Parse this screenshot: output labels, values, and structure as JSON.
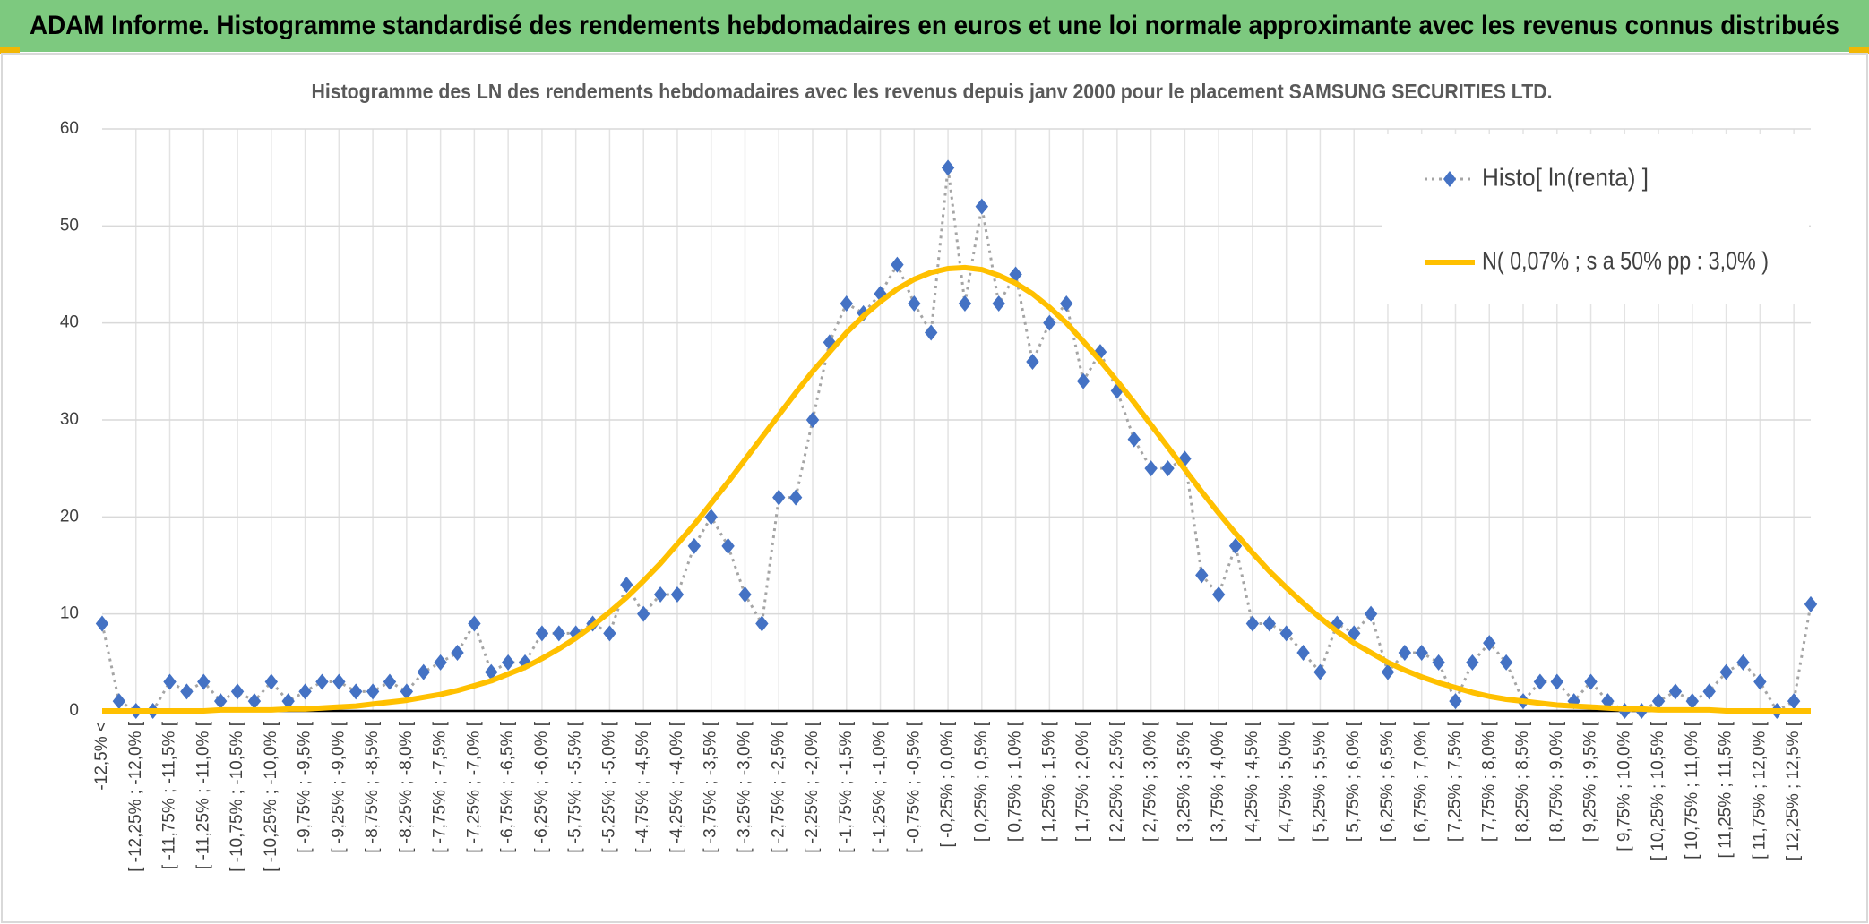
{
  "header": {
    "title": "ADAM Informe. Histogramme standardisé des rendements hebdomadaires en euros et une loi normale approximante avec les revenus connus distribués"
  },
  "chart_data": {
    "type": "line",
    "title": "Histogramme des LN des rendements hebdomadaires avec les revenus depuis janv 2000 pour le placement SAMSUNG SECURITIES LTD.",
    "categories": [
      "-12,5% <",
      null,
      "[ -12,25% ; -12,0% [",
      null,
      "[ -11,75% ; -11,5% [",
      null,
      "[ -11,25% ; -11,0% [",
      null,
      "[ -10,75% ; -10,5% [",
      null,
      "[ -10,25% ; -10,0% [",
      null,
      "[ -9,75% ; -9,5% [",
      null,
      "[ -9,25% ; -9,0% [",
      null,
      "[ -8,75% ; -8,5% [",
      null,
      "[ -8,25% ; -8,0% [",
      null,
      "[ -7,75% ; -7,5% [",
      null,
      "[ -7,25% ; -7,0% [",
      null,
      "[ -6,75% ; -6,5% [",
      null,
      "[ -6,25% ; -6,0% [",
      null,
      "[ -5,75% ; -5,5% [",
      null,
      "[ -5,25% ; -5,0% [",
      null,
      "[ -4,75% ; -4,5% [",
      null,
      "[ -4,25% ; -4,0% [",
      null,
      "[ -3,75% ; -3,5% [",
      null,
      "[ -3,25% ; -3,0% [",
      null,
      "[ -2,75% ; -2,5% [",
      null,
      "[ -2,25% ; -2,0% [",
      null,
      "[ -1,75% ; -1,5% [",
      null,
      "[ -1,25% ; -1,0% [",
      null,
      "[ -0,75% ; -0,5% [",
      null,
      "[ -0,25% ; 0,0% [",
      null,
      "[ 0,25% ; 0,5% [",
      null,
      "[ 0,75% ; 1,0% [",
      null,
      "[ 1,25% ; 1,5% [",
      null,
      "[ 1,75% ; 2,0% [",
      null,
      "[ 2,25% ; 2,5% [",
      null,
      "[ 2,75% ; 3,0% [",
      null,
      "[ 3,25% ; 3,5% [",
      null,
      "[ 3,75% ; 4,0% [",
      null,
      "[ 4,25% ; 4,5% [",
      null,
      "[ 4,75% ; 5,0% [",
      null,
      "[ 5,25% ; 5,5% [",
      null,
      "[ 5,75% ; 6,0% [",
      null,
      "[ 6,25% ; 6,5% [",
      null,
      "[ 6,75% ; 7,0% [",
      null,
      "[ 7,25% ; 7,5% [",
      null,
      "[ 7,75% ; 8,0% [",
      null,
      "[ 8,25% ; 8,5% [",
      null,
      "[ 8,75% ; 9,0% [",
      null,
      "[ 9,25% ; 9,5% [",
      null,
      "[ 9,75% ; 10,0% [",
      null,
      "[ 10,25% ; 10,5% [",
      null,
      "[ 10,75% ; 11,0% [",
      null,
      "[ 11,25% ; 11,5% [",
      null,
      "[ 11,75% ; 12,0% [",
      null,
      "[ 12,25% ; 12,5% [",
      null
    ],
    "series": [
      {
        "name": "Histo[ ln(renta) ]",
        "color": "#4472c4",
        "line_color": "#a5a5a5",
        "line_style": "dotted",
        "marker": "diamond",
        "values": [
          9,
          1,
          0,
          0,
          3,
          2,
          3,
          1,
          2,
          1,
          3,
          1,
          2,
          3,
          3,
          2,
          2,
          3,
          2,
          4,
          5,
          6,
          9,
          4,
          5,
          5,
          8,
          8,
          8,
          9,
          8,
          13,
          10,
          12,
          12,
          17,
          20,
          17,
          12,
          9,
          22,
          22,
          30,
          38,
          42,
          41,
          43,
          46,
          42,
          39,
          56,
          42,
          52,
          42,
          45,
          36,
          40,
          42,
          34,
          37,
          33,
          28,
          25,
          25,
          26,
          14,
          12,
          17,
          9,
          9,
          8,
          6,
          4,
          9,
          8,
          10,
          4,
          6,
          6,
          5,
          1,
          5,
          7,
          5,
          1,
          3,
          3,
          1,
          3,
          1,
          0,
          0,
          1,
          2,
          1,
          2,
          4,
          5,
          3,
          0,
          1,
          11
        ]
      },
      {
        "name": "N( 0,07% ; s a 50% pp : 3,0% )",
        "color": "#ffc000",
        "line_style": "solid",
        "marker": "none",
        "values": [
          0,
          0,
          0,
          0,
          0,
          0,
          0,
          0.1,
          0.1,
          0.1,
          0.1,
          0.2,
          0.2,
          0.3,
          0.4,
          0.5,
          0.7,
          0.9,
          1.1,
          1.4,
          1.7,
          2.1,
          2.6,
          3.1,
          3.8,
          4.5,
          5.4,
          6.4,
          7.5,
          8.8,
          10.2,
          11.7,
          13.4,
          15.2,
          17.2,
          19.2,
          21.4,
          23.6,
          25.9,
          28.2,
          30.5,
          32.8,
          35.0,
          37.0,
          39.0,
          40.7,
          42.2,
          43.5,
          44.5,
          45.2,
          45.6,
          45.7,
          45.5,
          44.9,
          44.1,
          43.0,
          41.6,
          40.0,
          38.1,
          36.1,
          34.0,
          31.8,
          29.5,
          27.2,
          24.9,
          22.6,
          20.4,
          18.3,
          16.3,
          14.4,
          12.7,
          11.1,
          9.6,
          8.2,
          7.0,
          6.0,
          5.0,
          4.2,
          3.5,
          2.9,
          2.4,
          1.9,
          1.5,
          1.2,
          1.0,
          0.8,
          0.6,
          0.5,
          0.4,
          0.3,
          0.2,
          0.2,
          0.1,
          0.1,
          0.1,
          0.1,
          0,
          0,
          0,
          0,
          0,
          0
        ]
      }
    ],
    "ylim": [
      0,
      60
    ],
    "yticks": [
      0,
      10,
      20,
      30,
      40,
      50,
      60
    ],
    "grid": true,
    "legend": "upper right"
  }
}
